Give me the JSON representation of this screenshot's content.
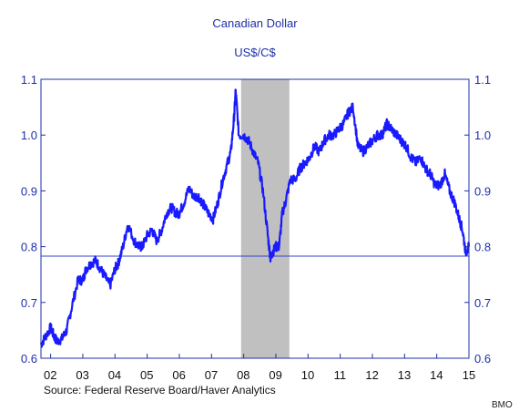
{
  "chart_data": {
    "type": "line",
    "title": "Canadian Dollar",
    "subtitle": "US$/C$",
    "xlabel": "",
    "ylabel": "",
    "source": "Source:  Federal Reserve Board/Haver Analytics",
    "credit": "BMO",
    "xlim": [
      2001.7,
      2015.0
    ],
    "ylim": [
      0.6,
      1.1
    ],
    "x_tick_labels": [
      "02",
      "03",
      "04",
      "05",
      "06",
      "07",
      "08",
      "09",
      "10",
      "11",
      "12",
      "13",
      "14",
      "15"
    ],
    "x_tick_values": [
      2002,
      2003,
      2004,
      2005,
      2006,
      2007,
      2008,
      2009,
      2010,
      2011,
      2012,
      2013,
      2014,
      2015
    ],
    "y_ticks": [
      "0.6",
      "0.7",
      "0.8",
      "0.9",
      "1.0",
      "1.1"
    ],
    "y_tick_values": [
      0.6,
      0.7,
      0.8,
      0.9,
      1.0,
      1.1
    ],
    "grid": false,
    "recession_shading": [
      [
        2007.92,
        2009.42
      ]
    ],
    "reference_line": 0.783,
    "series": [
      {
        "name": "",
        "color": "#1a1aff",
        "x": [
          2001.7,
          2001.85,
          2002.0,
          2002.1,
          2002.2,
          2002.35,
          2002.5,
          2002.65,
          2002.85,
          2003.0,
          2003.1,
          2003.25,
          2003.4,
          2003.55,
          2003.7,
          2003.85,
          2004.0,
          2004.1,
          2004.25,
          2004.4,
          2004.6,
          2004.75,
          2004.85,
          2005.0,
          2005.15,
          2005.3,
          2005.45,
          2005.6,
          2005.75,
          2005.9,
          2006.0,
          2006.15,
          2006.3,
          2006.45,
          2006.6,
          2006.75,
          2006.9,
          2007.05,
          2007.2,
          2007.35,
          2007.5,
          2007.6,
          2007.7,
          2007.75,
          2007.85,
          2008.0,
          2008.15,
          2008.3,
          2008.45,
          2008.6,
          2008.75,
          2008.83,
          2008.9,
          2009.0,
          2009.1,
          2009.2,
          2009.3,
          2009.45,
          2009.6,
          2009.75,
          2009.9,
          2010.05,
          2010.2,
          2010.35,
          2010.5,
          2010.65,
          2010.8,
          2010.95,
          2011.1,
          2011.25,
          2011.4,
          2011.55,
          2011.7,
          2011.85,
          2012.0,
          2012.15,
          2012.3,
          2012.45,
          2012.6,
          2012.75,
          2012.9,
          2013.05,
          2013.2,
          2013.35,
          2013.5,
          2013.65,
          2013.8,
          2013.95,
          2014.1,
          2014.25,
          2014.4,
          2014.55,
          2014.7,
          2014.8,
          2014.9,
          2015.0
        ],
        "values": [
          0.625,
          0.64,
          0.655,
          0.64,
          0.63,
          0.635,
          0.65,
          0.69,
          0.74,
          0.74,
          0.76,
          0.77,
          0.775,
          0.76,
          0.745,
          0.73,
          0.76,
          0.77,
          0.8,
          0.84,
          0.81,
          0.8,
          0.8,
          0.82,
          0.83,
          0.81,
          0.83,
          0.86,
          0.87,
          0.86,
          0.86,
          0.88,
          0.905,
          0.89,
          0.89,
          0.875,
          0.86,
          0.85,
          0.88,
          0.92,
          0.95,
          0.97,
          1.03,
          1.08,
          1.0,
          1.0,
          0.99,
          0.97,
          0.95,
          0.9,
          0.82,
          0.78,
          0.79,
          0.8,
          0.8,
          0.86,
          0.88,
          0.92,
          0.92,
          0.94,
          0.95,
          0.96,
          0.98,
          0.97,
          0.99,
          1.0,
          1.0,
          1.01,
          1.02,
          1.04,
          1.05,
          0.98,
          0.97,
          0.98,
          0.99,
          1.0,
          1.0,
          1.02,
          1.01,
          1.0,
          0.99,
          0.98,
          0.96,
          0.95,
          0.96,
          0.94,
          0.93,
          0.91,
          0.91,
          0.93,
          0.9,
          0.88,
          0.85,
          0.83,
          0.79,
          0.8
        ]
      }
    ]
  }
}
